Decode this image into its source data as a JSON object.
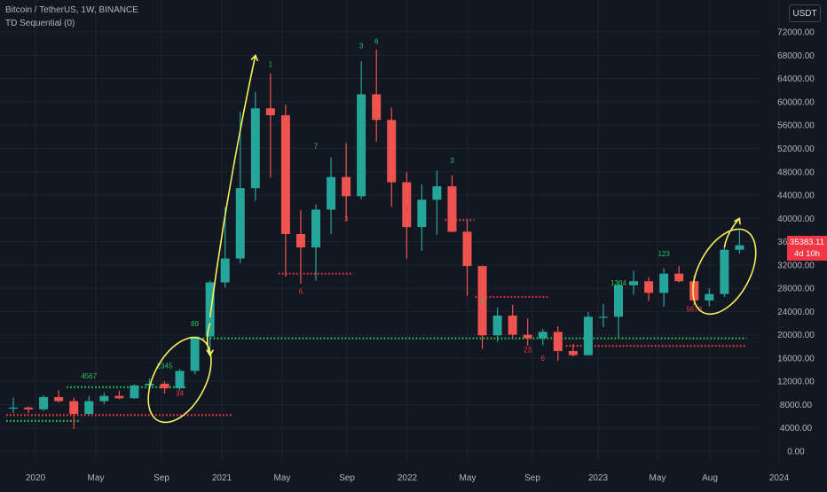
{
  "header": {
    "symbol_line": "Bitcoin / TetherUS, 1W, BINANCE",
    "indicator_line": "TD Sequential (0)"
  },
  "currency_button": "USDT",
  "last_price": {
    "value": "35383.11",
    "countdown": "4d 10h"
  },
  "colors": {
    "background": "#131722",
    "grid": "#1f2330",
    "up": "#26a69a",
    "down": "#ef5350",
    "axis_text": "#b2b5be",
    "support": "#22c55e",
    "resistance": "#f23645",
    "annotation": "#f5f35b"
  },
  "chart_data": {
    "type": "candlestick",
    "series": [
      {
        "name": "Bitcoin / TetherUS",
        "x": [
          "2019-11",
          "2019-12",
          "2020-01",
          "2020-02",
          "2020-03",
          "2020-04",
          "2020-05",
          "2020-06",
          "2020-07",
          "2020-08",
          "2020-09",
          "2020-10",
          "2020-11",
          "2020-12",
          "2021-01",
          "2021-02",
          "2021-03",
          "2021-04",
          "2021-05",
          "2021-06",
          "2021-07",
          "2021-08",
          "2021-09",
          "2021-10",
          "2021-11",
          "2021-12",
          "2022-01",
          "2022-02",
          "2022-03",
          "2022-04",
          "2022-05",
          "2022-06",
          "2022-07",
          "2022-08",
          "2022-09",
          "2022-10",
          "2022-11",
          "2022-12",
          "2023-01",
          "2023-02",
          "2023-03",
          "2023-04",
          "2023-05",
          "2023-06",
          "2023-07",
          "2023-08",
          "2023-09",
          "2023-10",
          "2023-11"
        ],
        "open": [
          7500,
          7500,
          7200,
          9300,
          8600,
          6400,
          8600,
          9500,
          9100,
          11300,
          11600,
          10800,
          13800,
          19700,
          29000,
          33100,
          45200,
          58900,
          57700,
          37300,
          35000,
          41500,
          47100,
          43800,
          61300,
          56900,
          46200,
          38500,
          43200,
          45500,
          37700,
          31800,
          19900,
          23300,
          20000,
          19400,
          20500,
          17200,
          16500,
          23100,
          23100,
          28500,
          29200,
          27200,
          30500,
          29200,
          25900,
          27000,
          34600
        ],
        "high": [
          9200,
          7700,
          9600,
          10500,
          9200,
          9500,
          10100,
          10400,
          11500,
          12500,
          12000,
          14100,
          19500,
          29300,
          41900,
          58300,
          61700,
          64900,
          59500,
          41400,
          42400,
          50500,
          52900,
          67000,
          69000,
          59000,
          47900,
          45800,
          48200,
          47400,
          39900,
          31900,
          24700,
          25200,
          22800,
          21000,
          21500,
          18400,
          23900,
          25300,
          29200,
          31000,
          29900,
          31400,
          31800,
          30200,
          28000,
          35200,
          37900
        ],
        "low": [
          6500,
          6500,
          6900,
          8400,
          3800,
          6200,
          8100,
          8900,
          9000,
          11100,
          9900,
          10400,
          13200,
          17600,
          28100,
          32300,
          43000,
          47000,
          30000,
          28800,
          29300,
          37300,
          39600,
          43300,
          53200,
          42000,
          33000,
          34400,
          37200,
          37600,
          26700,
          17600,
          18800,
          19500,
          18100,
          18200,
          15500,
          16300,
          16400,
          21300,
          19500,
          26900,
          25800,
          24800,
          29000,
          25100,
          24900,
          26500,
          33900
        ],
        "close": [
          7500,
          7200,
          9300,
          8600,
          6400,
          8600,
          9500,
          9100,
          11300,
          11600,
          10800,
          13800,
          19700,
          29000,
          33100,
          45200,
          58900,
          57700,
          37300,
          35000,
          41500,
          47100,
          43800,
          61300,
          56900,
          46200,
          38500,
          43200,
          45500,
          37700,
          31800,
          19900,
          23300,
          20000,
          19400,
          20500,
          17200,
          16500,
          23100,
          23100,
          28500,
          29200,
          27200,
          30500,
          29200,
          25900,
          27000,
          34600,
          35383
        ]
      }
    ],
    "levels": [
      {
        "kind": "support",
        "value": 19400,
        "from": "2020-12",
        "to": "2023-11"
      },
      {
        "kind": "support",
        "value": 11000,
        "from": "2020-03",
        "to": "2020-10"
      },
      {
        "kind": "support",
        "value": 5200,
        "from": "2019-11",
        "to": "2020-03"
      },
      {
        "kind": "resistance",
        "value": 6200,
        "from": "2019-11",
        "to": "2021-01"
      },
      {
        "kind": "resistance",
        "value": 30500,
        "from": "2021-05",
        "to": "2021-09"
      },
      {
        "kind": "resistance",
        "value": 39700,
        "from": "2022-04",
        "to": "2022-05"
      },
      {
        "kind": "resistance",
        "value": 26500,
        "from": "2022-06",
        "to": "2022-10"
      },
      {
        "kind": "resistance",
        "value": 18100,
        "from": "2022-12",
        "to": "2023-11"
      }
    ],
    "y_ticks": [
      "72000.00",
      "68000.00",
      "64000.00",
      "60000.00",
      "56000.00",
      "52000.00",
      "48000.00",
      "44000.00",
      "40000.00",
      "36000.00",
      "32000.00",
      "28000.00",
      "24000.00",
      "20000.00",
      "16000.00",
      "12000.00",
      "8000.00",
      "4000.00",
      "0.00"
    ],
    "x_ticks": [
      "2020",
      "May",
      "Sep",
      "2021",
      "May",
      "Sep",
      "2022",
      "May",
      "Sep",
      "2023",
      "May",
      "Aug",
      "2024"
    ],
    "ylim": [
      -1000,
      75000
    ],
    "grid": true,
    "td_count_labels": [
      {
        "x": "2020-04",
        "y": 12500,
        "text": "4567",
        "kind": "up"
      },
      {
        "x": "2020-09",
        "y": 14200,
        "text": "2345",
        "kind": "up"
      },
      {
        "x": "2020-10",
        "y": 9500,
        "text": "34",
        "kind": "down"
      },
      {
        "x": "2020-11",
        "y": 21500,
        "text": "89",
        "kind": "up"
      },
      {
        "x": "2021-04",
        "y": 66000,
        "text": "1",
        "kind": "up"
      },
      {
        "x": "2021-06",
        "y": 27000,
        "text": "6",
        "kind": "down"
      },
      {
        "x": "2021-07",
        "y": 52000,
        "text": "7",
        "kind": "up"
      },
      {
        "x": "2021-09",
        "y": 39500,
        "text": "3",
        "kind": "down"
      },
      {
        "x": "2021-10",
        "y": 69200,
        "text": "3",
        "kind": "up"
      },
      {
        "x": "2021-11",
        "y": 70000,
        "text": "6",
        "kind": "up"
      },
      {
        "x": "2022-01",
        "y": 41000,
        "text": "3",
        "kind": "down"
      },
      {
        "x": "2022-04",
        "y": 49500,
        "text": "3",
        "kind": "up"
      },
      {
        "x": "2022-06",
        "y": 25500,
        "text": "2",
        "kind": "up"
      },
      {
        "x": "2022-09",
        "y": 17000,
        "text": "23",
        "kind": "down"
      },
      {
        "x": "2022-10",
        "y": 15500,
        "text": "6",
        "kind": "down"
      },
      {
        "x": "2023-03",
        "y": 28500,
        "text": "1234",
        "kind": "up"
      },
      {
        "x": "2023-06",
        "y": 33500,
        "text": "123",
        "kind": "up"
      },
      {
        "x": "2023-08",
        "y": 24000,
        "text": "5678",
        "kind": "down"
      }
    ],
    "annotations": [
      {
        "kind": "arrow",
        "from": {
          "x": "2020-12",
          "y": 23000
        },
        "to": {
          "x": "2021-03",
          "y": 68000
        }
      },
      {
        "kind": "ellipse",
        "around": "2020-10"
      },
      {
        "kind": "arrow",
        "from": {
          "x": "2020-12",
          "y": 22000
        },
        "to": {
          "x": "2020-12",
          "y": 16500
        }
      },
      {
        "kind": "ellipse",
        "around": "2023-10"
      },
      {
        "kind": "arrow",
        "from": {
          "x": "2023-10",
          "y": 35000
        },
        "to": {
          "x": "2023-11",
          "y": 40000
        }
      }
    ]
  }
}
